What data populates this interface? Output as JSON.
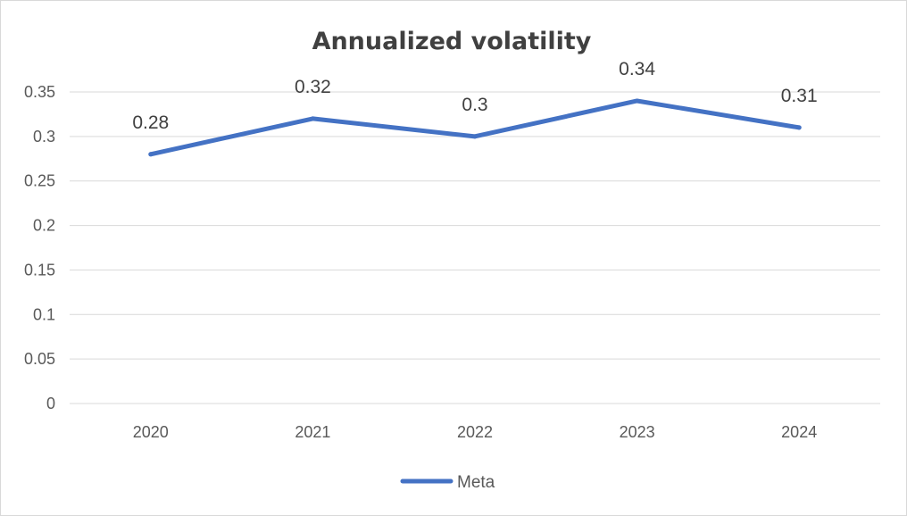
{
  "chart_data": {
    "type": "line",
    "title": "Annualized volatility",
    "xlabel": "",
    "ylabel": "",
    "categories": [
      "2020",
      "2021",
      "2022",
      "2023",
      "2024"
    ],
    "series": [
      {
        "name": "Meta",
        "values": [
          0.28,
          0.32,
          0.3,
          0.34,
          0.31
        ],
        "color": "#4472c4"
      }
    ],
    "data_labels": [
      "0.28",
      "0.32",
      "0.3",
      "0.34",
      "0.31"
    ],
    "ylim": [
      0,
      0.35
    ],
    "yticks": [
      "0",
      "0.05",
      "0.1",
      "0.15",
      "0.2",
      "0.25",
      "0.3",
      "0.35"
    ],
    "grid": true,
    "legend_position": "bottom"
  }
}
